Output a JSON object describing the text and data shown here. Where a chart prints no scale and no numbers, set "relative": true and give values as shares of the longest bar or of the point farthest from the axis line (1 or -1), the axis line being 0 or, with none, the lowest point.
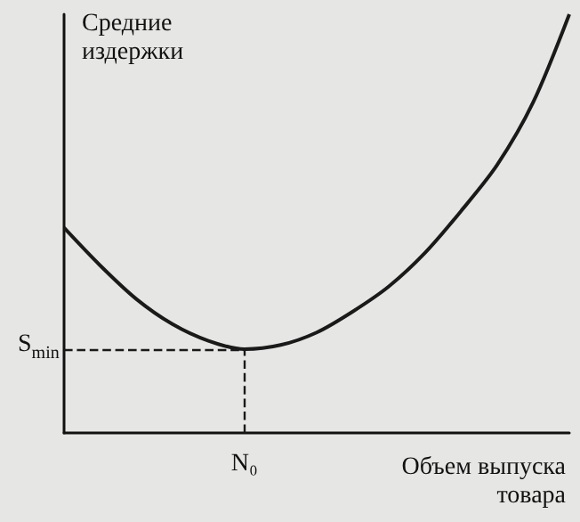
{
  "chart_data": {
    "type": "line",
    "ylabel": "Средние издержки",
    "xlabel": "Объем выпуска товара",
    "categories": [
      null,
      null,
      null,
      null,
      null,
      null,
      null,
      null,
      null,
      null,
      null,
      null,
      null,
      null,
      null
    ],
    "values": [
      0.49,
      0.4,
      0.32,
      0.26,
      0.22,
      0.2,
      0.21,
      0.24,
      0.29,
      0.35,
      0.43,
      0.53,
      0.64,
      0.79,
      1
    ],
    "color": "#1a1a1a",
    "relative": true,
    "marker": "none",
    "ref_lines": [
      {
        "axis": "y",
        "value": 0.2,
        "label": "S$_{min}$",
        "line_style": "dashed"
      }
    ],
    "annotations": [
      "N₀"
    ]
  }
}
